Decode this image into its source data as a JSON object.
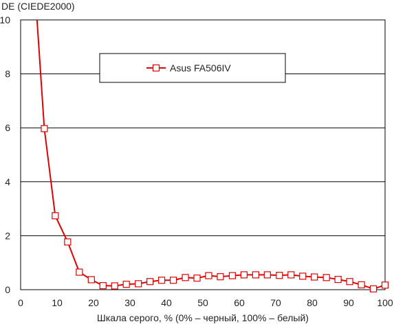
{
  "chart_data": {
    "type": "line",
    "title": "",
    "ylabel": "DE (CIEDE2000)",
    "xlabel": "Шкала серого, % (0% – черный, 100% – белый)",
    "xlim": [
      0,
      100
    ],
    "ylim": [
      0,
      10
    ],
    "xticks": [
      "0",
      "10",
      "20",
      "30",
      "40",
      "50",
      "60",
      "70",
      "80",
      "90",
      "100"
    ],
    "yticks": [
      "0",
      "2",
      "4",
      "6",
      "8",
      "10"
    ],
    "grid": "horizontal",
    "legend_position": "top-center",
    "series": [
      {
        "name": "Asus FA506IV",
        "color": "#e00000",
        "marker": "hollow-square",
        "start_point": {
          "x": 4.5,
          "y": 10.0
        },
        "x": [
          6.5,
          9.5,
          12.9,
          16.1,
          19.4,
          22.6,
          25.8,
          29.0,
          32.3,
          35.5,
          38.7,
          41.9,
          45.2,
          48.4,
          51.6,
          54.8,
          58.1,
          61.3,
          64.5,
          67.7,
          71.0,
          74.2,
          77.4,
          80.6,
          83.9,
          87.1,
          90.3,
          93.5,
          96.8,
          100.0
        ],
        "y": [
          5.97,
          2.74,
          1.77,
          0.65,
          0.37,
          0.15,
          0.14,
          0.2,
          0.22,
          0.3,
          0.35,
          0.35,
          0.45,
          0.43,
          0.52,
          0.48,
          0.52,
          0.55,
          0.55,
          0.55,
          0.53,
          0.55,
          0.5,
          0.47,
          0.45,
          0.38,
          0.3,
          0.18,
          0.03,
          0.17
        ]
      }
    ]
  }
}
